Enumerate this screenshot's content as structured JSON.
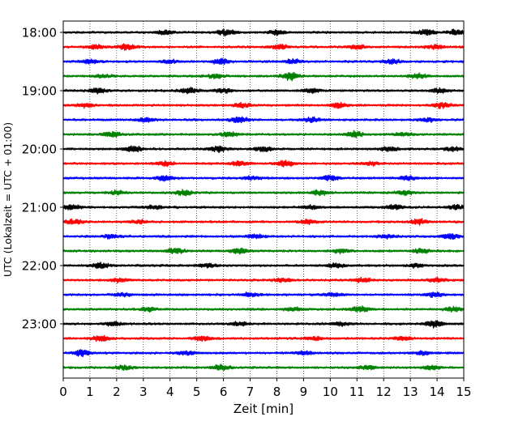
{
  "chart_data": {
    "type": "line",
    "title": "",
    "xlabel": "Zeit  [min]",
    "ylabel": "UTC (Lokalzeit = UTC + 01:00)",
    "xlim": [
      0,
      15
    ],
    "x_ticks": [
      0,
      1,
      2,
      3,
      4,
      5,
      6,
      7,
      8,
      9,
      10,
      11,
      12,
      13,
      14,
      15
    ],
    "y_tick_labels": [
      "18:00",
      "19:00",
      "20:00",
      "21:00",
      "22:00",
      "23:00"
    ],
    "trace_interval_min": 15,
    "traces_per_hour": 4,
    "first_trace": "18:00",
    "n_traces": 24,
    "grid": "vertical dotted lines at each minute",
    "series_colors": [
      "#000000",
      "#ff0000",
      "#0000ff",
      "#008000"
    ],
    "series": [
      {
        "start": "18:00",
        "color": "#000000",
        "bursts": [
          {
            "t": 3.8,
            "a": 0.7
          },
          {
            "t": 6.1,
            "a": 1.0
          },
          {
            "t": 8.0,
            "a": 0.8
          },
          {
            "t": 13.6,
            "a": 1.0
          },
          {
            "t": 14.7,
            "a": 0.8
          }
        ]
      },
      {
        "start": "18:15",
        "color": "#ff0000",
        "bursts": [
          {
            "t": 1.2,
            "a": 0.7
          },
          {
            "t": 2.4,
            "a": 1.0
          },
          {
            "t": 8.1,
            "a": 0.8
          },
          {
            "t": 11.0,
            "a": 0.7
          },
          {
            "t": 13.9,
            "a": 0.7
          }
        ]
      },
      {
        "start": "18:30",
        "color": "#0000ff",
        "bursts": [
          {
            "t": 1.0,
            "a": 0.6
          },
          {
            "t": 4.0,
            "a": 0.6
          },
          {
            "t": 5.9,
            "a": 0.9
          },
          {
            "t": 8.6,
            "a": 0.7
          },
          {
            "t": 12.3,
            "a": 0.7
          }
        ]
      },
      {
        "start": "18:45",
        "color": "#008000",
        "bursts": [
          {
            "t": 1.5,
            "a": 0.5
          },
          {
            "t": 5.7,
            "a": 0.7
          },
          {
            "t": 8.5,
            "a": 1.3
          },
          {
            "t": 13.3,
            "a": 0.7
          }
        ]
      },
      {
        "start": "19:00",
        "color": "#000000",
        "bursts": [
          {
            "t": 1.3,
            "a": 0.8
          },
          {
            "t": 4.7,
            "a": 0.9
          },
          {
            "t": 6.0,
            "a": 0.7
          },
          {
            "t": 9.3,
            "a": 0.8
          },
          {
            "t": 14.1,
            "a": 0.7
          }
        ]
      },
      {
        "start": "19:15",
        "color": "#ff0000",
        "bursts": [
          {
            "t": 0.8,
            "a": 0.6
          },
          {
            "t": 6.7,
            "a": 0.7
          },
          {
            "t": 10.3,
            "a": 0.8
          },
          {
            "t": 14.2,
            "a": 0.9
          }
        ]
      },
      {
        "start": "19:30",
        "color": "#0000ff",
        "bursts": [
          {
            "t": 3.1,
            "a": 0.6
          },
          {
            "t": 6.6,
            "a": 0.9
          },
          {
            "t": 9.3,
            "a": 0.7
          },
          {
            "t": 13.7,
            "a": 0.6
          }
        ]
      },
      {
        "start": "19:45",
        "color": "#008000",
        "bursts": [
          {
            "t": 1.8,
            "a": 1.0
          },
          {
            "t": 6.2,
            "a": 0.8
          },
          {
            "t": 10.9,
            "a": 1.0
          },
          {
            "t": 12.7,
            "a": 0.6
          }
        ]
      },
      {
        "start": "20:00",
        "color": "#000000",
        "bursts": [
          {
            "t": 2.6,
            "a": 1.0
          },
          {
            "t": 5.8,
            "a": 1.0
          },
          {
            "t": 7.5,
            "a": 0.8
          },
          {
            "t": 12.2,
            "a": 0.7
          },
          {
            "t": 14.6,
            "a": 0.6
          }
        ]
      },
      {
        "start": "20:15",
        "color": "#ff0000",
        "bursts": [
          {
            "t": 3.8,
            "a": 0.7
          },
          {
            "t": 6.6,
            "a": 0.7
          },
          {
            "t": 8.3,
            "a": 1.2
          },
          {
            "t": 11.5,
            "a": 0.6
          }
        ]
      },
      {
        "start": "20:30",
        "color": "#0000ff",
        "bursts": [
          {
            "t": 3.8,
            "a": 0.8
          },
          {
            "t": 7.1,
            "a": 0.6
          },
          {
            "t": 10.0,
            "a": 0.8
          },
          {
            "t": 12.9,
            "a": 0.6
          }
        ]
      },
      {
        "start": "20:45",
        "color": "#008000",
        "bursts": [
          {
            "t": 2.0,
            "a": 0.6
          },
          {
            "t": 4.5,
            "a": 0.9
          },
          {
            "t": 9.6,
            "a": 0.9
          },
          {
            "t": 12.8,
            "a": 0.7
          }
        ]
      },
      {
        "start": "21:00",
        "color": "#000000",
        "bursts": [
          {
            "t": 0.3,
            "a": 0.8
          },
          {
            "t": 3.4,
            "a": 0.6
          },
          {
            "t": 9.3,
            "a": 0.7
          },
          {
            "t": 12.4,
            "a": 0.8
          },
          {
            "t": 14.7,
            "a": 0.7
          }
        ]
      },
      {
        "start": "21:15",
        "color": "#ff0000",
        "bursts": [
          {
            "t": 0.4,
            "a": 0.7
          },
          {
            "t": 2.8,
            "a": 0.6
          },
          {
            "t": 9.2,
            "a": 0.7
          },
          {
            "t": 13.3,
            "a": 0.9
          }
        ]
      },
      {
        "start": "21:30",
        "color": "#0000ff",
        "bursts": [
          {
            "t": 1.8,
            "a": 0.6
          },
          {
            "t": 7.2,
            "a": 0.7
          },
          {
            "t": 12.1,
            "a": 0.6
          },
          {
            "t": 14.5,
            "a": 1.0
          }
        ]
      },
      {
        "start": "21:45",
        "color": "#008000",
        "bursts": [
          {
            "t": 4.2,
            "a": 0.9
          },
          {
            "t": 6.6,
            "a": 0.9
          },
          {
            "t": 10.4,
            "a": 0.7
          },
          {
            "t": 13.4,
            "a": 0.7
          }
        ]
      },
      {
        "start": "22:00",
        "color": "#000000",
        "bursts": [
          {
            "t": 1.4,
            "a": 1.0
          },
          {
            "t": 5.4,
            "a": 0.6
          },
          {
            "t": 10.2,
            "a": 0.7
          },
          {
            "t": 13.2,
            "a": 0.6
          }
        ]
      },
      {
        "start": "22:15",
        "color": "#ff0000",
        "bursts": [
          {
            "t": 2.1,
            "a": 0.6
          },
          {
            "t": 8.2,
            "a": 0.6
          },
          {
            "t": 11.2,
            "a": 0.7
          },
          {
            "t": 14.0,
            "a": 0.6
          }
        ]
      },
      {
        "start": "22:30",
        "color": "#0000ff",
        "bursts": [
          {
            "t": 2.2,
            "a": 0.6
          },
          {
            "t": 7.0,
            "a": 0.6
          },
          {
            "t": 10.1,
            "a": 0.6
          },
          {
            "t": 13.9,
            "a": 0.8
          }
        ]
      },
      {
        "start": "22:45",
        "color": "#008000",
        "bursts": [
          {
            "t": 3.2,
            "a": 0.6
          },
          {
            "t": 8.6,
            "a": 0.6
          },
          {
            "t": 11.1,
            "a": 1.1
          },
          {
            "t": 14.6,
            "a": 0.8
          }
        ]
      },
      {
        "start": "23:00",
        "color": "#000000",
        "bursts": [
          {
            "t": 1.9,
            "a": 0.7
          },
          {
            "t": 6.6,
            "a": 0.6
          },
          {
            "t": 10.4,
            "a": 0.6
          },
          {
            "t": 13.9,
            "a": 1.1
          }
        ]
      },
      {
        "start": "23:15",
        "color": "#ff0000",
        "bursts": [
          {
            "t": 1.4,
            "a": 0.9
          },
          {
            "t": 5.2,
            "a": 0.8
          },
          {
            "t": 9.4,
            "a": 0.7
          },
          {
            "t": 12.7,
            "a": 0.6
          }
        ]
      },
      {
        "start": "23:30",
        "color": "#0000ff",
        "bursts": [
          {
            "t": 0.7,
            "a": 1.0
          },
          {
            "t": 4.6,
            "a": 0.6
          },
          {
            "t": 9.0,
            "a": 0.6
          },
          {
            "t": 13.5,
            "a": 0.6
          }
        ]
      },
      {
        "start": "23:45",
        "color": "#008000",
        "bursts": [
          {
            "t": 2.3,
            "a": 0.7
          },
          {
            "t": 5.9,
            "a": 0.8
          },
          {
            "t": 11.4,
            "a": 0.7
          },
          {
            "t": 13.8,
            "a": 0.6
          }
        ]
      }
    ]
  }
}
